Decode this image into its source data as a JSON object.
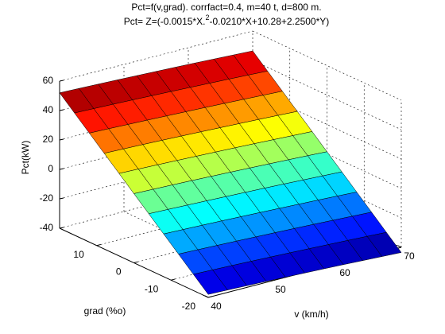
{
  "chart_data": {
    "type": "surface",
    "title": [
      "Pct=f(v,grad). corrfact=0.4, m=40 t, d=800 m.",
      [
        "Pct= Z=(-0.0015*X.",
        "2",
        "-0.0210*X+10.28+2.2500*Y)"
      ]
    ],
    "xlabel": "v (km/h)",
    "ylabel": "grad (%o)",
    "zlabel": "Pct(kW)",
    "x": [
      40,
      43,
      46,
      49,
      52,
      55,
      58,
      61,
      64,
      67,
      70
    ],
    "y": [
      -20,
      -16,
      -12,
      -8,
      -4,
      0,
      4,
      8,
      12,
      16,
      20
    ],
    "z": [
      [
        -37.96,
        -38.4,
        -38.86,
        -39.35,
        -39.87,
        -40.41,
        -40.98,
        -41.58,
        -42.21,
        -42.86,
        -43.54
      ],
      [
        -28.96,
        -29.4,
        -29.86,
        -30.35,
        -30.87,
        -31.41,
        -31.98,
        -32.58,
        -33.21,
        -33.86,
        -34.54
      ],
      [
        -19.96,
        -20.4,
        -20.86,
        -21.35,
        -21.87,
        -22.41,
        -22.98,
        -23.58,
        -24.21,
        -24.86,
        -25.54
      ],
      [
        -10.96,
        -11.4,
        -11.86,
        -12.35,
        -12.87,
        -13.41,
        -13.98,
        -14.58,
        -15.21,
        -15.86,
        -16.54
      ],
      [
        -1.96,
        -2.4,
        -2.86,
        -3.35,
        -3.87,
        -4.41,
        -4.98,
        -5.58,
        -6.21,
        -6.86,
        -7.54
      ],
      [
        7.04,
        6.6,
        6.14,
        5.65,
        5.13,
        4.59,
        4.02,
        3.42,
        2.79,
        2.14,
        1.46
      ],
      [
        16.04,
        15.6,
        15.14,
        14.65,
        14.13,
        13.59,
        13.02,
        12.42,
        11.79,
        11.14,
        10.46
      ],
      [
        25.04,
        24.6,
        24.14,
        23.65,
        23.13,
        22.59,
        22.02,
        21.42,
        20.79,
        20.14,
        19.46
      ],
      [
        34.04,
        33.6,
        33.14,
        32.65,
        32.13,
        31.59,
        31.02,
        30.42,
        29.79,
        29.14,
        28.46
      ],
      [
        43.04,
        42.6,
        42.14,
        41.65,
        41.13,
        40.59,
        40.02,
        39.42,
        38.79,
        38.14,
        37.46
      ],
      [
        52.04,
        51.6,
        51.14,
        50.65,
        50.13,
        49.59,
        49.02,
        48.42,
        47.79,
        47.14,
        46.46
      ]
    ],
    "xlim": [
      40,
      70
    ],
    "ylim": [
      -20,
      20
    ],
    "zlim": [
      -40,
      60
    ],
    "xticks": [
      40,
      50,
      60,
      70
    ],
    "yticks": [
      -20,
      -10,
      0,
      10
    ],
    "zticks": [
      -40,
      -20,
      0,
      20,
      40,
      60
    ],
    "grid": true,
    "colormap": "jet"
  }
}
